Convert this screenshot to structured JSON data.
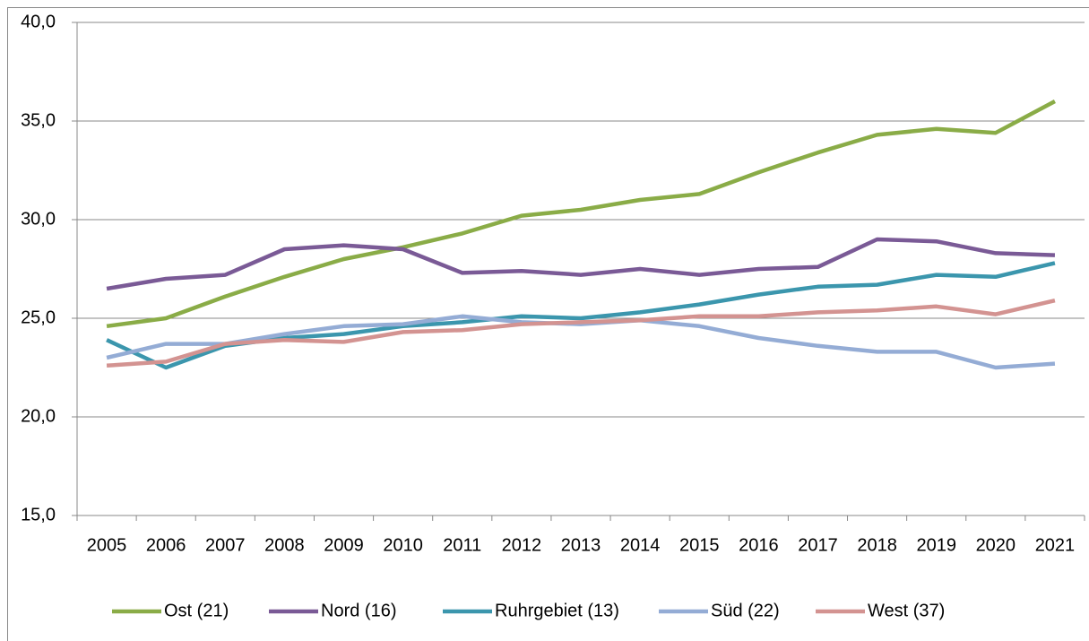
{
  "chart_data": {
    "type": "line",
    "categories": [
      "2005",
      "2006",
      "2007",
      "2008",
      "2009",
      "2010",
      "2011",
      "2012",
      "2013",
      "2014",
      "2015",
      "2016",
      "2017",
      "2018",
      "2019",
      "2020",
      "2021"
    ],
    "series": [
      {
        "name": "Ost (21)",
        "color": "#8aac47",
        "values": [
          24.6,
          25.0,
          26.1,
          27.1,
          28.0,
          28.6,
          29.3,
          30.2,
          30.5,
          31.0,
          31.3,
          32.4,
          33.4,
          34.3,
          34.6,
          34.4,
          36.0
        ]
      },
      {
        "name": "Nord (16)",
        "color": "#7a5a96",
        "values": [
          26.5,
          27.0,
          27.2,
          28.5,
          28.7,
          28.5,
          27.3,
          27.4,
          27.2,
          27.5,
          27.2,
          27.5,
          27.6,
          29.0,
          28.9,
          28.3,
          28.2
        ]
      },
      {
        "name": "Ruhrgebiet (13)",
        "color": "#3b96ad",
        "values": [
          23.9,
          22.5,
          23.6,
          24.0,
          24.2,
          24.6,
          24.8,
          25.1,
          25.0,
          25.3,
          25.7,
          26.2,
          26.6,
          26.7,
          27.2,
          27.1,
          27.8
        ]
      },
      {
        "name": "Süd (22)",
        "color": "#94acd5",
        "values": [
          23.0,
          23.7,
          23.7,
          24.2,
          24.6,
          24.7,
          25.1,
          24.8,
          24.7,
          24.9,
          24.6,
          24.0,
          23.6,
          23.3,
          23.3,
          22.5,
          22.7
        ]
      },
      {
        "name": "West (37)",
        "color": "#d39391",
        "values": [
          22.6,
          22.8,
          23.7,
          23.9,
          23.8,
          24.3,
          24.4,
          24.7,
          24.8,
          24.9,
          25.1,
          25.1,
          25.3,
          25.4,
          25.6,
          25.2,
          25.9
        ]
      }
    ],
    "ylim": [
      15,
      40
    ],
    "yticks": [
      {
        "value": 15,
        "label": "15,0"
      },
      {
        "value": 20,
        "label": "20,0"
      },
      {
        "value": 25,
        "label": "25,0"
      },
      {
        "value": 30,
        "label": "30,0"
      },
      {
        "value": 35,
        "label": "35,0"
      },
      {
        "value": 40,
        "label": "40,0"
      }
    ],
    "grid": true,
    "legend": "bottom"
  }
}
